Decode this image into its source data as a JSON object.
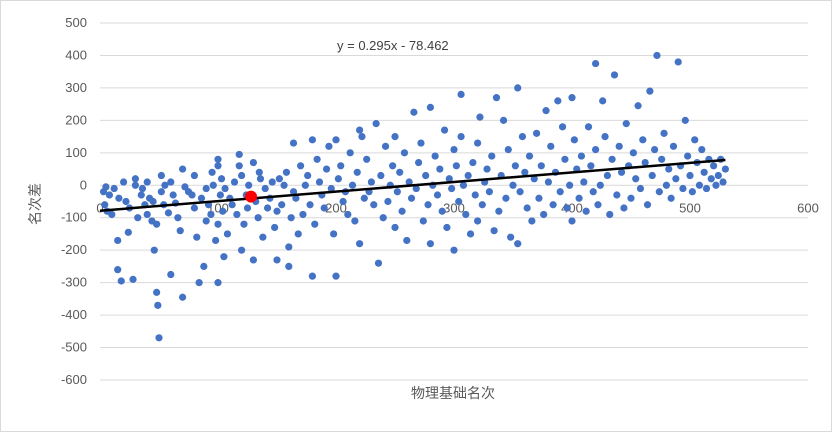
{
  "chart_data": {
    "type": "scatter",
    "title": "",
    "xlabel": "物理基础名次",
    "ylabel": "名次差",
    "xlim": [
      0,
      600
    ],
    "ylim": [
      -600,
      500
    ],
    "x_ticks": [
      0,
      100,
      200,
      300,
      400,
      500,
      600
    ],
    "y_ticks": [
      -600,
      -500,
      -400,
      -300,
      -200,
      -100,
      0,
      100,
      200,
      300,
      400,
      500
    ],
    "grid": "horizontal",
    "legend": "none",
    "trendline": {
      "slope": 0.295,
      "intercept": -78.462,
      "equation_label": "y = 0.295x - 78.462",
      "range": [
        0,
        530
      ]
    },
    "highlight": {
      "x": 128,
      "y": -35,
      "color": "#ff0000"
    },
    "colors": {
      "points": "#4472c4",
      "trendline": "#000000",
      "grid": "#d9d9d9"
    },
    "points": [
      [
        3,
        -20
      ],
      [
        4,
        -60
      ],
      [
        5,
        -5
      ],
      [
        6,
        -80
      ],
      [
        8,
        -30
      ],
      [
        10,
        -90
      ],
      [
        12,
        -10
      ],
      [
        15,
        -260
      ],
      [
        15,
        -170
      ],
      [
        16,
        -40
      ],
      [
        18,
        -295
      ],
      [
        20,
        10
      ],
      [
        22,
        -50
      ],
      [
        24,
        -145
      ],
      [
        25,
        -70
      ],
      [
        28,
        -290
      ],
      [
        30,
        0
      ],
      [
        30,
        20
      ],
      [
        32,
        -100
      ],
      [
        35,
        -30
      ],
      [
        36,
        -10
      ],
      [
        38,
        -60
      ],
      [
        40,
        -90
      ],
      [
        40,
        10
      ],
      [
        42,
        -40
      ],
      [
        44,
        -110
      ],
      [
        45,
        -50
      ],
      [
        46,
        -200
      ],
      [
        48,
        -120
      ],
      [
        48,
        -330
      ],
      [
        49,
        -370
      ],
      [
        50,
        -470
      ],
      [
        52,
        -20
      ],
      [
        52,
        30
      ],
      [
        54,
        -60
      ],
      [
        55,
        0
      ],
      [
        58,
        -85
      ],
      [
        60,
        -275
      ],
      [
        60,
        10
      ],
      [
        62,
        -30
      ],
      [
        64,
        -55
      ],
      [
        66,
        -100
      ],
      [
        68,
        -140
      ],
      [
        70,
        -345
      ],
      [
        70,
        50
      ],
      [
        72,
        -5
      ],
      [
        75,
        -20
      ],
      [
        78,
        -30
      ],
      [
        80,
        -70
      ],
      [
        80,
        30
      ],
      [
        82,
        -160
      ],
      [
        84,
        -300
      ],
      [
        86,
        -40
      ],
      [
        88,
        -250
      ],
      [
        90,
        -110
      ],
      [
        90,
        -10
      ],
      [
        92,
        -60
      ],
      [
        94,
        -90
      ],
      [
        95,
        40
      ],
      [
        96,
        0
      ],
      [
        98,
        -170
      ],
      [
        100,
        -120
      ],
      [
        100,
        -300
      ],
      [
        100,
        80
      ],
      [
        100,
        60
      ],
      [
        102,
        -30
      ],
      [
        103,
        20
      ],
      [
        104,
        -80
      ],
      [
        105,
        -220
      ],
      [
        106,
        -10
      ],
      [
        108,
        -150
      ],
      [
        110,
        -40
      ],
      [
        112,
        -60
      ],
      [
        114,
        10
      ],
      [
        116,
        -90
      ],
      [
        118,
        95
      ],
      [
        118,
        60
      ],
      [
        120,
        30
      ],
      [
        120,
        -200
      ],
      [
        122,
        -120
      ],
      [
        124,
        -30
      ],
      [
        125,
        -70
      ],
      [
        126,
        0
      ],
      [
        130,
        -230
      ],
      [
        130,
        70
      ],
      [
        132,
        -50
      ],
      [
        134,
        -100
      ],
      [
        135,
        40
      ],
      [
        136,
        20
      ],
      [
        138,
        -160
      ],
      [
        140,
        -10
      ],
      [
        142,
        -70
      ],
      [
        144,
        -40
      ],
      [
        146,
        10
      ],
      [
        148,
        -130
      ],
      [
        150,
        -80
      ],
      [
        150,
        -230
      ],
      [
        152,
        20
      ],
      [
        154,
        -60
      ],
      [
        156,
        0
      ],
      [
        158,
        40
      ],
      [
        160,
        -190
      ],
      [
        160,
        -250
      ],
      [
        162,
        -100
      ],
      [
        164,
        130
      ],
      [
        164,
        -20
      ],
      [
        166,
        -40
      ],
      [
        168,
        -150
      ],
      [
        170,
        60
      ],
      [
        172,
        -90
      ],
      [
        174,
        0
      ],
      [
        176,
        30
      ],
      [
        178,
        -60
      ],
      [
        180,
        140
      ],
      [
        180,
        -280
      ],
      [
        182,
        -120
      ],
      [
        184,
        80
      ],
      [
        186,
        10
      ],
      [
        188,
        -30
      ],
      [
        190,
        -70
      ],
      [
        192,
        50
      ],
      [
        194,
        120
      ],
      [
        196,
        -10
      ],
      [
        198,
        -150
      ],
      [
        200,
        -280
      ],
      [
        200,
        140
      ],
      [
        202,
        20
      ],
      [
        204,
        60
      ],
      [
        206,
        -50
      ],
      [
        208,
        -20
      ],
      [
        210,
        -90
      ],
      [
        212,
        100
      ],
      [
        214,
        0
      ],
      [
        216,
        -110
      ],
      [
        218,
        40
      ],
      [
        220,
        -180
      ],
      [
        220,
        170
      ],
      [
        222,
        150
      ],
      [
        224,
        -40
      ],
      [
        226,
        80
      ],
      [
        228,
        -20
      ],
      [
        230,
        10
      ],
      [
        232,
        -60
      ],
      [
        234,
        190
      ],
      [
        236,
        -240
      ],
      [
        238,
        30
      ],
      [
        240,
        -100
      ],
      [
        242,
        120
      ],
      [
        244,
        -50
      ],
      [
        246,
        0
      ],
      [
        248,
        60
      ],
      [
        250,
        150
      ],
      [
        250,
        -130
      ],
      [
        252,
        -20
      ],
      [
        254,
        40
      ],
      [
        256,
        -80
      ],
      [
        258,
        100
      ],
      [
        260,
        -170
      ],
      [
        262,
        10
      ],
      [
        264,
        -40
      ],
      [
        266,
        225
      ],
      [
        268,
        -10
      ],
      [
        270,
        70
      ],
      [
        272,
        130
      ],
      [
        274,
        -110
      ],
      [
        276,
        30
      ],
      [
        278,
        -60
      ],
      [
        280,
        240
      ],
      [
        280,
        -180
      ],
      [
        282,
        0
      ],
      [
        284,
        90
      ],
      [
        286,
        -30
      ],
      [
        288,
        50
      ],
      [
        290,
        -80
      ],
      [
        292,
        170
      ],
      [
        294,
        -130
      ],
      [
        296,
        20
      ],
      [
        298,
        -10
      ],
      [
        300,
        110
      ],
      [
        300,
        -200
      ],
      [
        302,
        60
      ],
      [
        304,
        -50
      ],
      [
        306,
        280
      ],
      [
        306,
        150
      ],
      [
        308,
        0
      ],
      [
        310,
        -90
      ],
      [
        312,
        30
      ],
      [
        314,
        -150
      ],
      [
        316,
        70
      ],
      [
        318,
        -30
      ],
      [
        320,
        130
      ],
      [
        320,
        -110
      ],
      [
        322,
        210
      ],
      [
        324,
        -60
      ],
      [
        326,
        10
      ],
      [
        328,
        50
      ],
      [
        330,
        -20
      ],
      [
        332,
        90
      ],
      [
        334,
        -140
      ],
      [
        336,
        270
      ],
      [
        338,
        -80
      ],
      [
        340,
        30
      ],
      [
        342,
        200
      ],
      [
        344,
        -40
      ],
      [
        346,
        110
      ],
      [
        348,
        -160
      ],
      [
        350,
        0
      ],
      [
        352,
        60
      ],
      [
        354,
        300
      ],
      [
        354,
        -180
      ],
      [
        356,
        -20
      ],
      [
        358,
        150
      ],
      [
        360,
        40
      ],
      [
        362,
        -70
      ],
      [
        364,
        90
      ],
      [
        366,
        -110
      ],
      [
        368,
        20
      ],
      [
        370,
        160
      ],
      [
        372,
        -40
      ],
      [
        374,
        60
      ],
      [
        376,
        -90
      ],
      [
        378,
        230
      ],
      [
        380,
        10
      ],
      [
        382,
        120
      ],
      [
        384,
        -60
      ],
      [
        386,
        40
      ],
      [
        388,
        260
      ],
      [
        390,
        -20
      ],
      [
        392,
        180
      ],
      [
        394,
        80
      ],
      [
        396,
        -70
      ],
      [
        398,
        0
      ],
      [
        400,
        270
      ],
      [
        400,
        -110
      ],
      [
        402,
        140
      ],
      [
        404,
        50
      ],
      [
        406,
        -40
      ],
      [
        408,
        90
      ],
      [
        410,
        10
      ],
      [
        412,
        -80
      ],
      [
        414,
        180
      ],
      [
        416,
        60
      ],
      [
        418,
        -20
      ],
      [
        420,
        375
      ],
      [
        420,
        110
      ],
      [
        422,
        -60
      ],
      [
        424,
        0
      ],
      [
        426,
        260
      ],
      [
        428,
        150
      ],
      [
        430,
        30
      ],
      [
        432,
        -90
      ],
      [
        434,
        80
      ],
      [
        436,
        340
      ],
      [
        438,
        -30
      ],
      [
        440,
        120
      ],
      [
        442,
        40
      ],
      [
        444,
        -70
      ],
      [
        446,
        190
      ],
      [
        448,
        60
      ],
      [
        450,
        -40
      ],
      [
        452,
        100
      ],
      [
        454,
        20
      ],
      [
        456,
        245
      ],
      [
        458,
        -10
      ],
      [
        460,
        140
      ],
      [
        462,
        70
      ],
      [
        464,
        -60
      ],
      [
        466,
        290
      ],
      [
        468,
        30
      ],
      [
        470,
        110
      ],
      [
        472,
        400
      ],
      [
        474,
        -20
      ],
      [
        476,
        80
      ],
      [
        478,
        160
      ],
      [
        480,
        0
      ],
      [
        482,
        50
      ],
      [
        484,
        -40
      ],
      [
        486,
        120
      ],
      [
        488,
        20
      ],
      [
        490,
        380
      ],
      [
        492,
        60
      ],
      [
        494,
        -10
      ],
      [
        496,
        200
      ],
      [
        498,
        90
      ],
      [
        500,
        30
      ],
      [
        502,
        -20
      ],
      [
        504,
        140
      ],
      [
        506,
        70
      ],
      [
        508,
        0
      ],
      [
        510,
        110
      ],
      [
        512,
        40
      ],
      [
        514,
        -10
      ],
      [
        516,
        80
      ],
      [
        518,
        20
      ],
      [
        520,
        60
      ],
      [
        522,
        0
      ],
      [
        524,
        30
      ],
      [
        526,
        80
      ],
      [
        528,
        10
      ],
      [
        530,
        50
      ]
    ]
  }
}
